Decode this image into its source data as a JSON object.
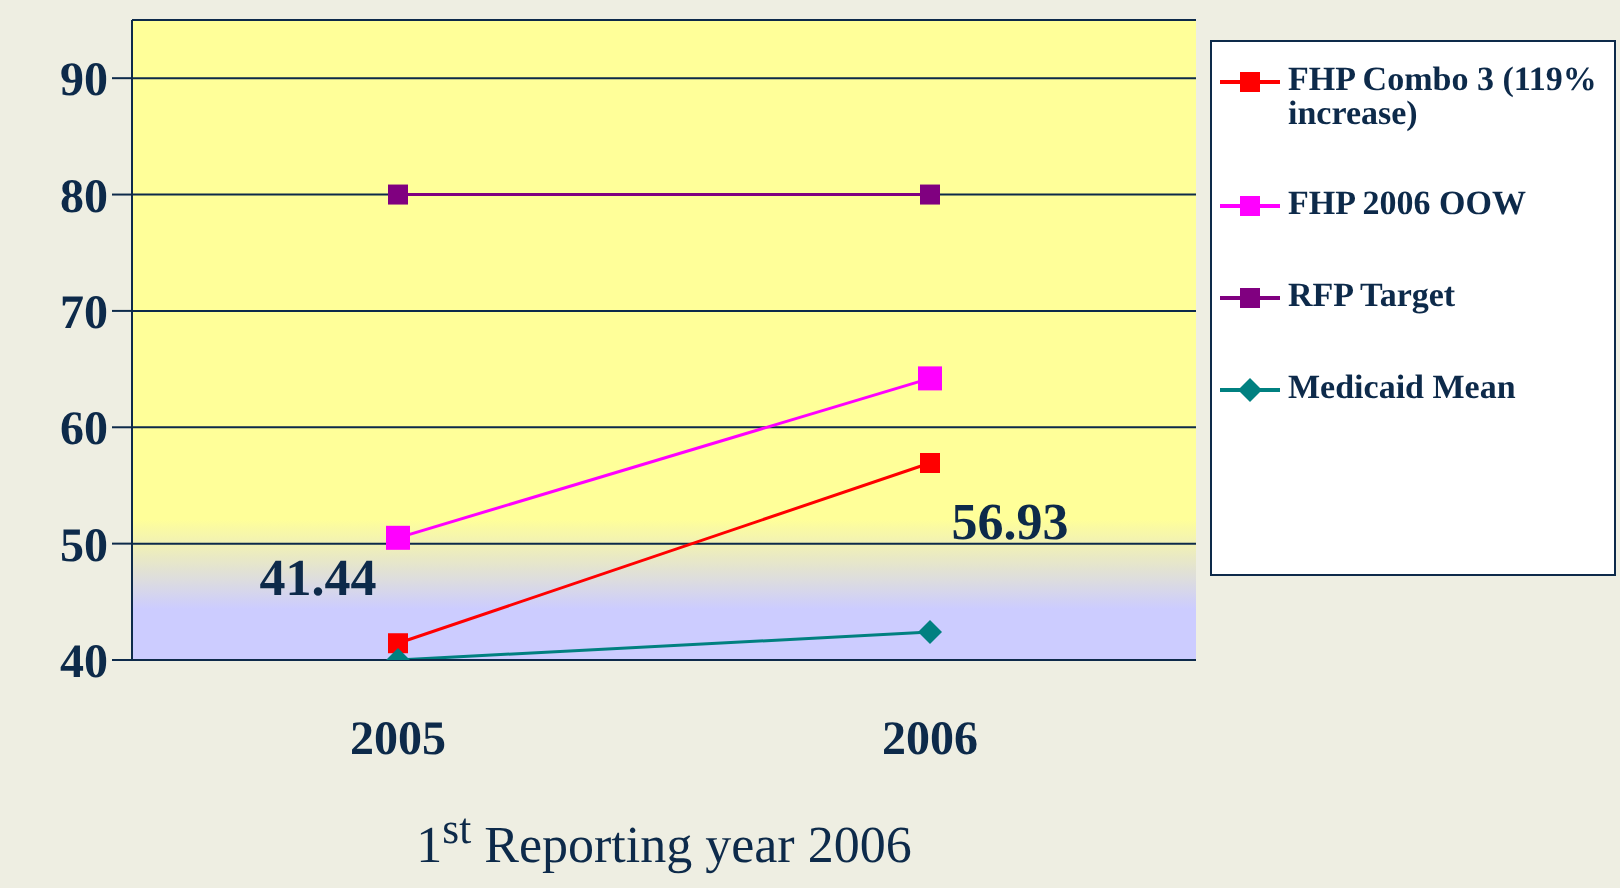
{
  "chart_data": {
    "type": "line",
    "xlabel": "1$^{st}$ Reporting year 2006",
    "categories": [
      "2005",
      "2006"
    ],
    "series": [
      {
        "name": "FHP Combo 3 (119% increase)",
        "color": "#ff0000",
        "marker": "square",
        "values": [
          41.44,
          56.93
        ],
        "value_labels": [
          "41.44",
          "56.93"
        ]
      },
      {
        "name": "FHP 2006 OOW",
        "color": "#ff00ff",
        "marker": "square",
        "values": [
          50.5,
          64.2
        ]
      },
      {
        "name": "RFP Target",
        "color": "#800080",
        "marker": "square",
        "values": [
          80,
          80
        ]
      },
      {
        "name": "Medicaid Mean",
        "color": "#008080",
        "marker": "diamond",
        "values": [
          40.0,
          42.4
        ]
      }
    ],
    "ylim": [
      40,
      95
    ],
    "yticks": [
      40,
      50,
      60,
      70,
      80,
      90
    ],
    "grid": "y",
    "legend": "right"
  }
}
